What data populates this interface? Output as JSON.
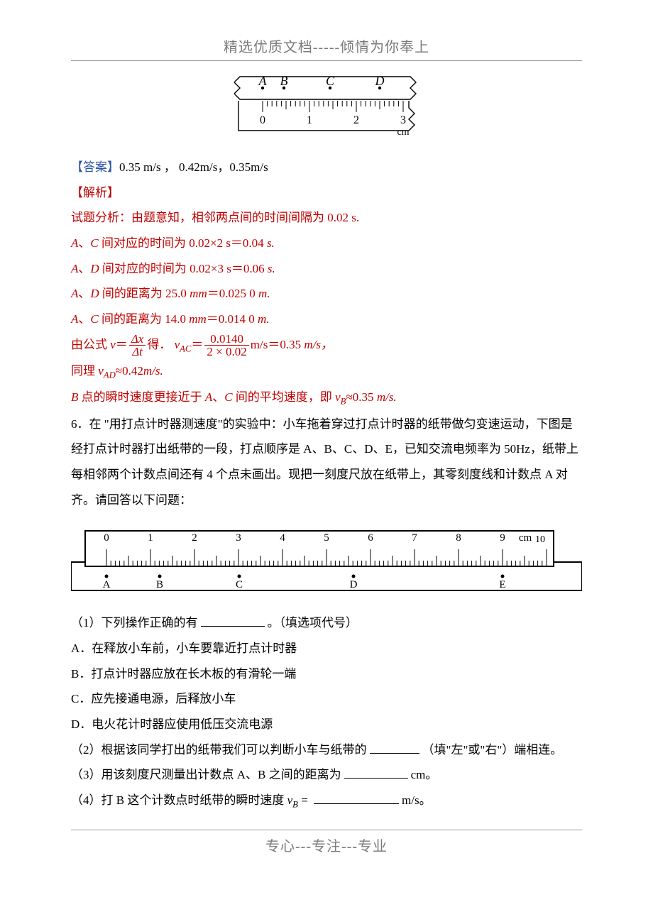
{
  "header": "精选优质文档-----倾情为你奉上",
  "footer": "专心---专注---专业",
  "fig1": {
    "labels": [
      "A",
      "B",
      "C",
      "D"
    ],
    "scale_numbers": [
      "0",
      "1",
      "2",
      "3"
    ],
    "unit": "cm"
  },
  "answer_line": {
    "prefix": "【答案】",
    "text": "0.35 m/s ，   0.42m/s，0.35m/s"
  },
  "analysis_heading": "【解析】",
  "analysis_intro": "试题分析：由题意知，相邻两点间的时间间隔为 0.02 s.",
  "lineA": {
    "prefix": "A",
    "mid": "、",
    "sym2": "C",
    "rest": " 间对应的时间为 0.02×2 s＝0.04 ",
    "unit": "s."
  },
  "lineB": {
    "prefix": "A",
    "mid": "、",
    "sym2": "D",
    "rest": " 间对应的时间为 0.02×3 s＝0.06 ",
    "unit": "s."
  },
  "lineC": {
    "prefix": "A",
    "mid": "、",
    "sym2": "D",
    "rest": " 间的距离为 25.0 ",
    "unit1": "mm",
    "eq": "＝0.025 0 ",
    "unit2": "m."
  },
  "lineD": {
    "prefix": "A",
    "mid": "、",
    "sym2": "C",
    "rest": " 间的距离为 14.0 ",
    "unit1": "mm",
    "eq": "＝0.014 0 ",
    "unit2": "m."
  },
  "formula": {
    "pre": "由公式 ",
    "v": "v",
    "eq1": "＝",
    "frac1_num": "Δx",
    "frac1_den": "Δt",
    "got": "得．  ",
    "vac": "v",
    "vac_sub": "AC",
    "eq2": "＝",
    "frac2_num": "0.0140",
    "frac2_den": "2 × 0.02",
    "tail": "m/s＝0.35 ",
    "tail_unit": "m/s，"
  },
  "likewise": {
    "pre": "同理 ",
    "v": "v",
    "sub": "AD",
    "rest": "≈0.42",
    "unit": "m/s."
  },
  "pointB": {
    "b": "B",
    "mid1": " 点的瞬时速度更接近于 ",
    "a": "A",
    "sep": "、",
    "c": "C",
    "mid2": " 间的平均速度，即 ",
    "v": "v",
    "sub": "B",
    "tail": "≈0.35 ",
    "unit": "m/s."
  },
  "q6": {
    "para": "6．在 \"用打点计时器测速度\"的实验中：小车拖着穿过打点计时器的纸带做匀变速运动，下图是经打点计时器打出纸带的一段，打点顺序是 A、B、C、D、E，已知交流电频率为 50Hz，纸带上每相邻两个计数点间还有 4 个点未画出。现把一刻度尺放在纸带上，其零刻度线和计数点 A 对齐。请回答以下问题："
  },
  "fig2": {
    "scale_numbers": [
      "0",
      "1",
      "2",
      "3",
      "4",
      "5",
      "6",
      "7",
      "8",
      "9",
      "10"
    ],
    "unit": "cm",
    "points": [
      "A",
      "B",
      "C",
      "D",
      "E"
    ]
  },
  "sub1": {
    "text": "（1）下列操作正确的有",
    "tail": "。（填选项代号）"
  },
  "optA": "A．在释放小车前，小车要靠近打点计时器",
  "optB": "B．打点计时器应放在长木板的有滑轮一端",
  "optC": "C．应先接通电源，后释放小车",
  "optD": "D．电火花计时器应使用低压交流电源",
  "sub2": {
    "pre": "（2）根据该同学打出的纸带我们可以判断小车与纸带的",
    "tail": "（填\"左\"或\"右\"）端相连。"
  },
  "sub3": {
    "pre": "（3）用该刻度尺测量出计数点 A、B 之间的距离为",
    "tail": "cm。"
  },
  "sub4": {
    "pre": "（4）打 B 这个计数点时纸带的瞬时速度 ",
    "v": "v",
    "sub": "B",
    "eq": " = ",
    "tail": "m/s。"
  }
}
